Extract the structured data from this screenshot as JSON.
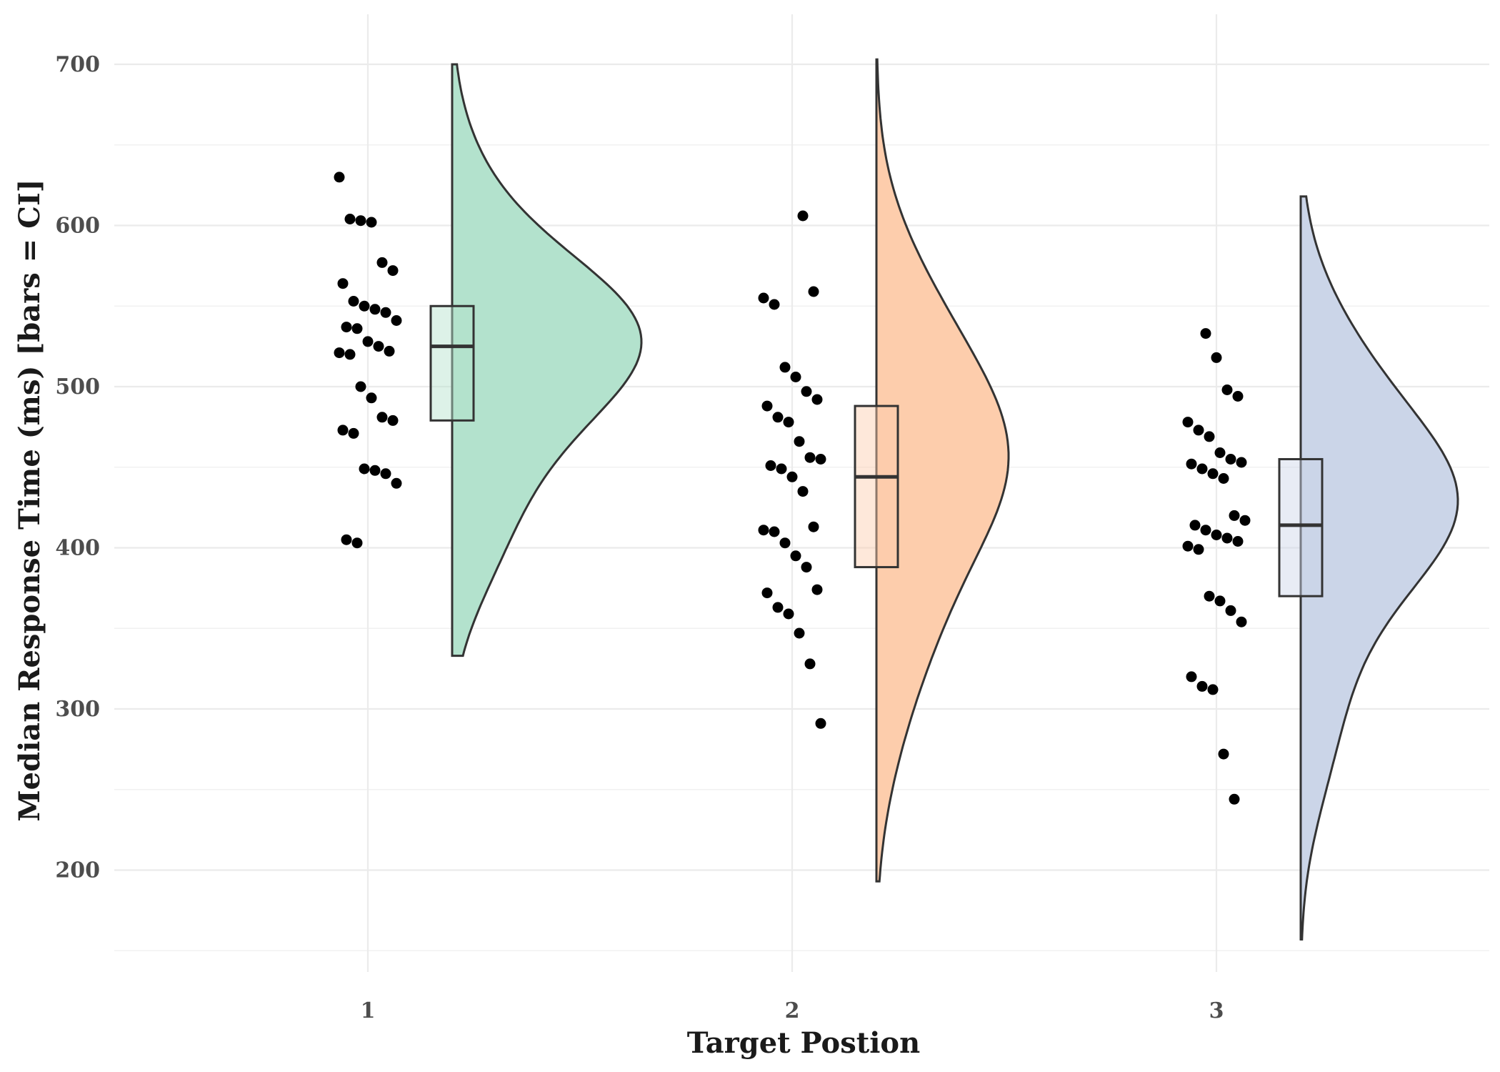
{
  "chart_data": {
    "type": "raincloud",
    "xlabel": "Target Postion",
    "ylabel": "Median Response Time (ms) [bars = CI]",
    "x_ticks": [
      "1",
      "2",
      "3"
    ],
    "y_ticks": [
      200,
      300,
      400,
      500,
      600,
      700
    ],
    "ylim": [
      150,
      720
    ],
    "grid": true,
    "colors": {
      "1": "#b3e2cd",
      "2": "#fdcdac",
      "3": "#cbd5e8"
    },
    "groups": [
      {
        "category": "1",
        "box": {
          "lower": 479,
          "median": 525,
          "upper": 550
        },
        "density_range": [
          333,
          700
        ],
        "density_peak": 535,
        "points": [
          630,
          604,
          603,
          602,
          577,
          572,
          564,
          553,
          550,
          548,
          546,
          541,
          537,
          536,
          528,
          525,
          522,
          521,
          520,
          500,
          493,
          481,
          479,
          473,
          471,
          449,
          448,
          446,
          440,
          405,
          403
        ]
      },
      {
        "category": "2",
        "box": {
          "lower": 388,
          "median": 444,
          "upper": 488
        },
        "density_range": [
          193,
          703
        ],
        "density_peak": 450,
        "points": [
          606,
          559,
          555,
          551,
          512,
          506,
          497,
          492,
          488,
          481,
          478,
          466,
          456,
          455,
          451,
          449,
          444,
          435,
          413,
          411,
          410,
          403,
          395,
          388,
          374,
          372,
          363,
          359,
          347,
          328,
          291
        ]
      },
      {
        "category": "3",
        "box": {
          "lower": 370,
          "median": 414,
          "upper": 455
        },
        "density_range": [
          157,
          618
        ],
        "density_peak": 425,
        "points": [
          533,
          518,
          498,
          494,
          478,
          473,
          469,
          459,
          455,
          453,
          452,
          449,
          446,
          443,
          420,
          417,
          414,
          411,
          408,
          406,
          404,
          401,
          399,
          370,
          367,
          361,
          354,
          320,
          314,
          312,
          272,
          244
        ]
      }
    ]
  }
}
